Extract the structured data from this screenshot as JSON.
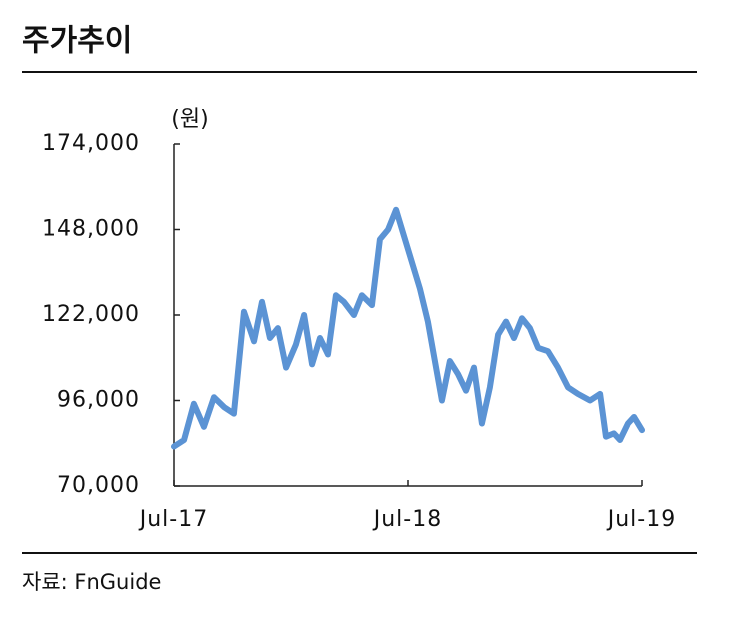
{
  "chart_data": {
    "type": "line",
    "title": "주가추이",
    "y_unit": "(원)",
    "source": "자료: FnGuide",
    "xlim": [
      2017.5,
      2019.5
    ],
    "xticks": [
      {
        "value": 2017.5,
        "label": "Jul-17"
      },
      {
        "value": 2018.5,
        "label": "Jul-18"
      },
      {
        "value": 2019.5,
        "label": "Jul-19"
      }
    ],
    "ylim": [
      70000,
      174000
    ],
    "yticks": [
      {
        "value": 70000,
        "label": "70,000"
      },
      {
        "value": 96000,
        "label": "96,000"
      },
      {
        "value": 122000,
        "label": "122,000"
      },
      {
        "value": 148000,
        "label": "148,000"
      },
      {
        "value": 174000,
        "label": "174,000"
      }
    ],
    "x": [
      2017.5,
      2017.543,
      2017.585,
      2017.628,
      2017.671,
      2017.714,
      2017.756,
      2017.799,
      2017.842,
      2017.876,
      2017.91,
      2017.944,
      2017.979,
      2018.021,
      2018.056,
      2018.09,
      2018.124,
      2018.158,
      2018.192,
      2018.226,
      2018.269,
      2018.303,
      2018.346,
      2018.38,
      2018.415,
      2018.449,
      2018.483,
      2018.517,
      2018.551,
      2018.585,
      2018.62,
      2018.645,
      2018.679,
      2018.714,
      2018.748,
      2018.782,
      2018.816,
      2018.85,
      2018.885,
      2018.919,
      2018.953,
      2018.987,
      2019.021,
      2019.056,
      2019.098,
      2019.141,
      2019.184,
      2019.226,
      2019.278,
      2019.321,
      2019.346,
      2019.38,
      2019.406,
      2019.44,
      2019.466,
      2019.5
    ],
    "series": [
      {
        "color": "#5b93d4",
        "values": [
          82000,
          84000,
          95000,
          88000,
          97000,
          94000,
          92000,
          123000,
          114000,
          126000,
          115000,
          118000,
          106000,
          113000,
          122000,
          107000,
          115000,
          110000,
          128000,
          126000,
          122000,
          128000,
          125000,
          145000,
          148000,
          154000,
          146000,
          138000,
          130000,
          120000,
          106000,
          96000,
          108000,
          104000,
          99000,
          106000,
          89000,
          100000,
          116000,
          120000,
          115000,
          121000,
          118000,
          112000,
          111000,
          106000,
          100000,
          98000,
          96000,
          98000,
          85000,
          86000,
          84000,
          89000,
          91000,
          87000
        ]
      }
    ]
  }
}
